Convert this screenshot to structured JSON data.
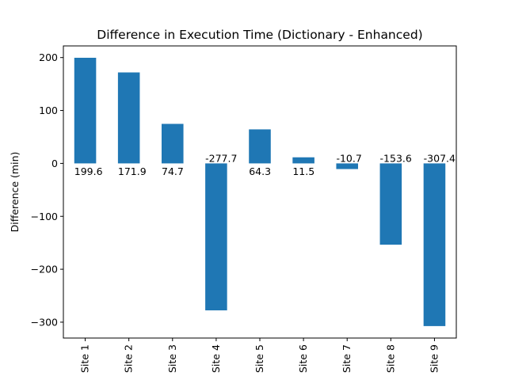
{
  "chart_data": {
    "type": "bar",
    "title": "Difference in Execution Time (Dictionary - Enhanced)",
    "xlabel": "",
    "ylabel": "Difference (min)",
    "categories": [
      "Site 1",
      "Site 2",
      "Site 3",
      "Site 4",
      "Site 5",
      "Site 6",
      "Site 7",
      "Site 8",
      "Site 9"
    ],
    "values": [
      199.6,
      171.9,
      74.7,
      -277.7,
      64.3,
      11.5,
      -10.7,
      -153.6,
      -307.4
    ],
    "data_labels": [
      "199.6",
      "171.9",
      "74.7",
      "-277.7",
      "64.3",
      "11.5",
      "-10.7",
      "-153.6",
      "-307.4"
    ],
    "ylim": [
      -330,
      222
    ],
    "yticks": [
      200,
      100,
      0,
      -100,
      -200,
      -300
    ],
    "ytick_labels": [
      "200",
      "100",
      "0",
      "−100",
      "−200",
      "−300"
    ],
    "bar_color": "#1f77b4",
    "grid": false,
    "legend": "none"
  }
}
